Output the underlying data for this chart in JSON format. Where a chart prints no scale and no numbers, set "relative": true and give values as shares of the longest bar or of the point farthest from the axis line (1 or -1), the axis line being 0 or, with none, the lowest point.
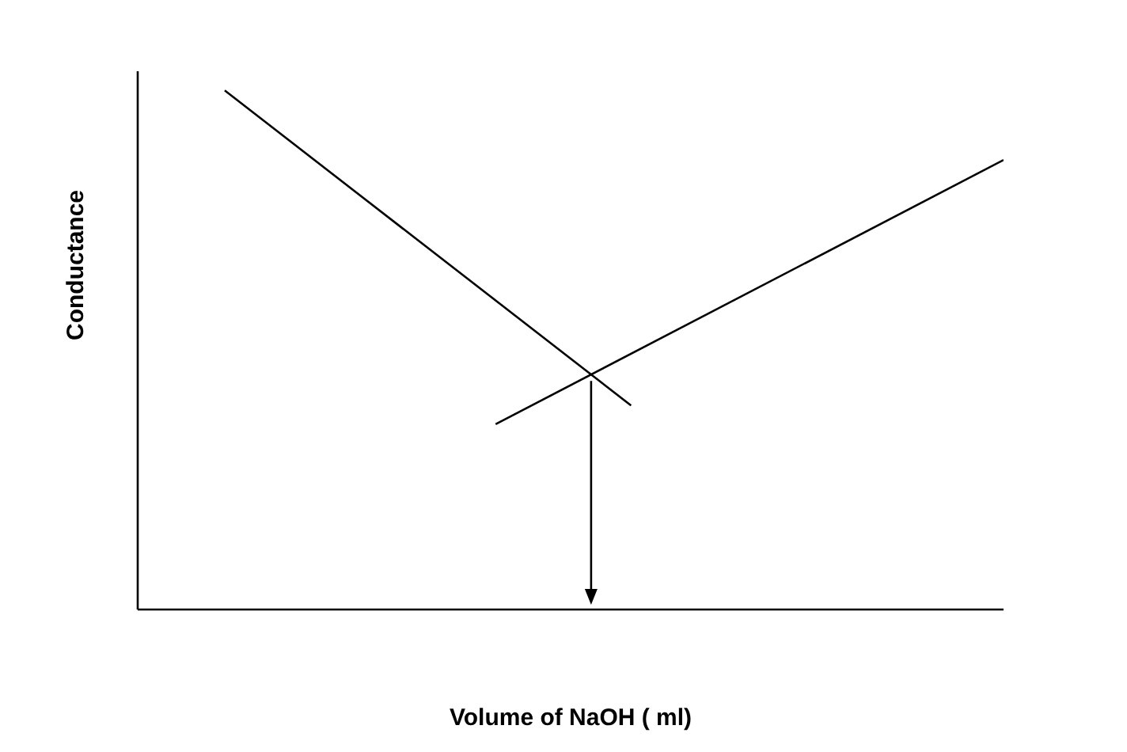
{
  "chart_data": {
    "type": "line",
    "relative": true,
    "xlabel": "Volume of NaOH ( ml)",
    "ylabel": "Conductance",
    "categories": [
      null,
      null,
      null,
      null,
      null,
      null,
      null,
      null,
      null,
      null,
      null,
      null,
      null,
      null,
      null,
      null,
      null,
      null,
      null,
      null,
      null,
      null,
      null,
      null
    ],
    "series": [
      {
        "color": "#000000",
        "values": [
          1,
          null,
          null,
          null,
          null,
          null,
          null,
          null,
          null,
          null,
          null,
          null,
          0.393,
          null,
          null,
          null,
          null,
          null,
          null,
          null,
          null,
          null,
          null,
          null
        ]
      },
      {
        "color": "#000000",
        "values": [
          null,
          null,
          null,
          null,
          null,
          null,
          null,
          null,
          0.357,
          null,
          null,
          null,
          null,
          null,
          null,
          null,
          null,
          null,
          null,
          null,
          null,
          null,
          null,
          0.866
        ]
      }
    ]
  }
}
